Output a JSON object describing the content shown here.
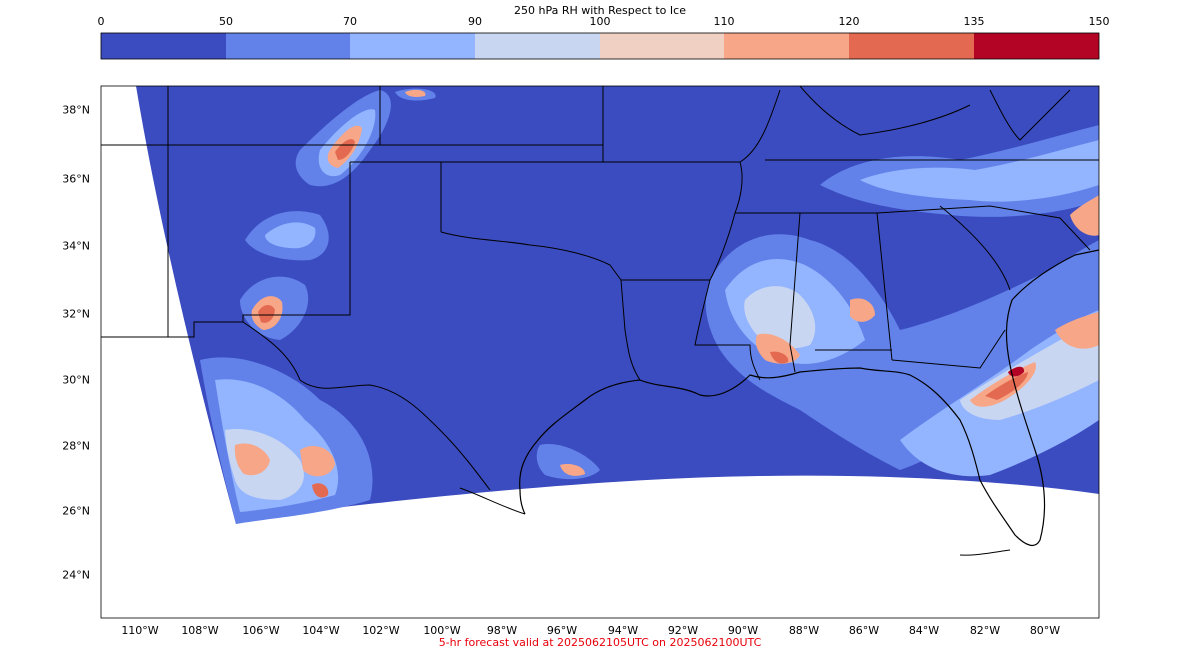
{
  "colorbar": {
    "title": "250 hPa RH with Respect to Ice",
    "ticks": [
      "0",
      "50",
      "70",
      "90",
      "100",
      "110",
      "120",
      "135",
      "150"
    ],
    "colors": [
      "#3b4cc0",
      "#6282ea",
      "#93b4fe",
      "#c8d6f1",
      "#f0d0c2",
      "#f7a688",
      "#e36a51",
      "#b40426"
    ]
  },
  "latitude_labels": [
    "38°N",
    "36°N",
    "34°N",
    "32°N",
    "30°N",
    "28°N",
    "26°N",
    "24°N"
  ],
  "longitude_labels": [
    "110°W",
    "108°W",
    "106°W",
    "104°W",
    "102°W",
    "100°W",
    "98°W",
    "96°W",
    "94°W",
    "92°W",
    "90°W",
    "88°W",
    "86°W",
    "84°W",
    "82°W",
    "80°W"
  ],
  "footer": "5-hr forecast valid at 2025062105UTC on 2025062100UTC",
  "map": {
    "background_color": "#3b4cc0",
    "land_border_color": "#000000"
  }
}
